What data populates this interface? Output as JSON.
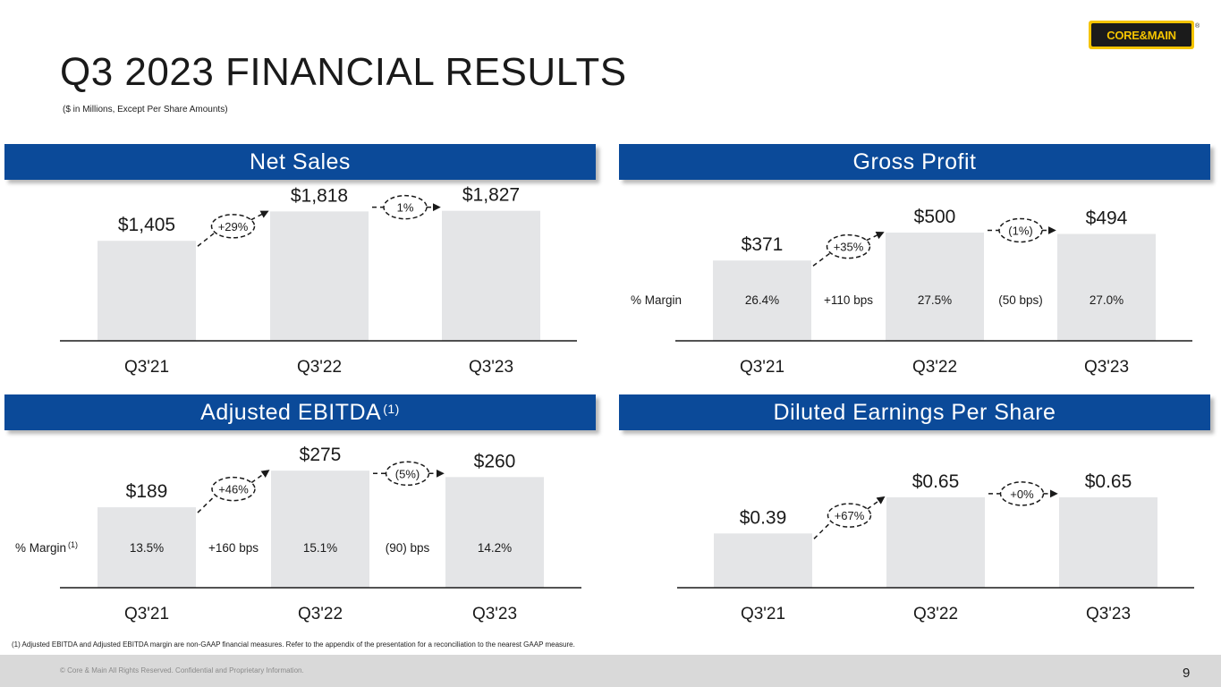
{
  "slide": {
    "title": "Q3 2023 FINANCIAL RESULTS",
    "subtitle": "($ in Millions, Except Per Share Amounts)",
    "logo_text": "CORE&MAIN",
    "logo_registered": "®",
    "footnote": "(1) Adjusted EBITDA and Adjusted EBITDA margin are non-GAAP financial measures. Refer to the appendix of the presentation for a reconciliation to the nearest GAAP measure.",
    "copyright": "© Core & Main All Rights Reserved. Confidential and Proprietary Information.",
    "page_number": "9"
  },
  "colors": {
    "header_bg": "#0b4a99",
    "bar": "#e4e5e7",
    "logo_yellow": "#f5c400"
  },
  "panels": [
    {
      "title": "Net Sales",
      "title_sup": ""
    },
    {
      "title": "Gross Profit",
      "title_sup": ""
    },
    {
      "title": "Adjusted EBITDA",
      "title_sup": "(1)"
    },
    {
      "title": "Diluted Earnings Per Share",
      "title_sup": ""
    }
  ],
  "chart_data": [
    {
      "type": "bar",
      "title": "Net Sales",
      "categories": [
        "Q3'21",
        "Q3'22",
        "Q3'23"
      ],
      "values": [
        1405,
        1818,
        1827
      ],
      "value_labels": [
        "$1,405",
        "$1,818",
        "$1,827"
      ],
      "growth_labels": [
        "+29%",
        "1%"
      ],
      "ylim": [
        0,
        2200
      ]
    },
    {
      "type": "bar",
      "title": "Gross Profit",
      "categories": [
        "Q3'21",
        "Q3'22",
        "Q3'23"
      ],
      "values": [
        371,
        500,
        494
      ],
      "value_labels": [
        "$371",
        "$500",
        "$494"
      ],
      "growth_labels": [
        "+35%",
        "(1%)"
      ],
      "margin_label": "% Margin",
      "margin_label_sup": "",
      "margins": [
        "26.4%",
        "27.5%",
        "27.0%"
      ],
      "margin_changes": [
        "+110 bps",
        "(50 bps)"
      ],
      "ylim": [
        0,
        620
      ]
    },
    {
      "type": "bar",
      "title": "Adjusted EBITDA",
      "categories": [
        "Q3'21",
        "Q3'22",
        "Q3'23"
      ],
      "values": [
        189,
        275,
        260
      ],
      "value_labels": [
        "$189",
        "$275",
        "$260"
      ],
      "growth_labels": [
        "+46%",
        "(5%)"
      ],
      "margin_label": "% Margin",
      "margin_label_sup": "(1)",
      "margins": [
        "13.5%",
        "15.1%",
        "14.2%"
      ],
      "margin_changes": [
        "+160 bps",
        "(90) bps"
      ],
      "ylim": [
        0,
        330
      ]
    },
    {
      "type": "bar",
      "title": "Diluted Earnings Per Share",
      "categories": [
        "Q3'21",
        "Q3'22",
        "Q3'23"
      ],
      "values": [
        0.39,
        0.65,
        0.65
      ],
      "value_labels": [
        "$0.39",
        "$0.65",
        "$0.65"
      ],
      "growth_labels": [
        "+67%",
        "+0%"
      ],
      "ylim": [
        0,
        0.9
      ]
    }
  ]
}
